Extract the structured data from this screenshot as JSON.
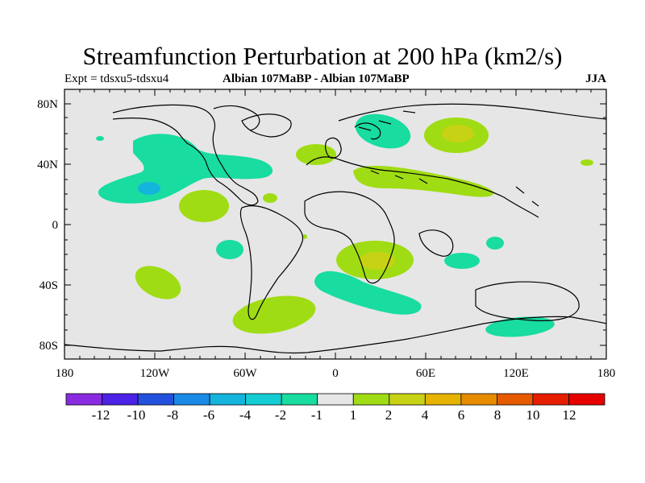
{
  "title": "Streamfunction Perturbation at 200 hPa (km2/s)",
  "subtitle": {
    "left": "Expt = tdsxu5-tdsxu4",
    "center": "Albian   107MaBP - Albian   107MaBP",
    "right": "JJA"
  },
  "map": {
    "lon_range": [
      -180,
      180
    ],
    "lat_range": [
      -90,
      90
    ],
    "y_tick_labels": [
      "80N",
      "40N",
      "0",
      "40S",
      "80S"
    ],
    "x_tick_labels": [
      "180",
      "120W",
      "60W",
      "0",
      "60E",
      "120E",
      "180"
    ],
    "background_color": "#e6e6e6"
  },
  "colorbar": {
    "labels": [
      "-12",
      "-10",
      "-8",
      "-6",
      "-4",
      "-2",
      "-1",
      "1",
      "2",
      "4",
      "6",
      "8",
      "10",
      "12"
    ],
    "colors": [
      "#8a2be2",
      "#4b22e6",
      "#2350dc",
      "#1a8ae6",
      "#14b4dc",
      "#14cdd2",
      "#18dca0",
      "#e6e6e6",
      "#a0dc14",
      "#c8d214",
      "#e6b400",
      "#e68c00",
      "#e65a00",
      "#e61e00",
      "#e60000"
    ]
  },
  "fields": {
    "green_teal": "#18dca0",
    "light_green": "#a0dc14",
    "yellow": "#c8d214",
    "cyan": "#14b4dc"
  }
}
